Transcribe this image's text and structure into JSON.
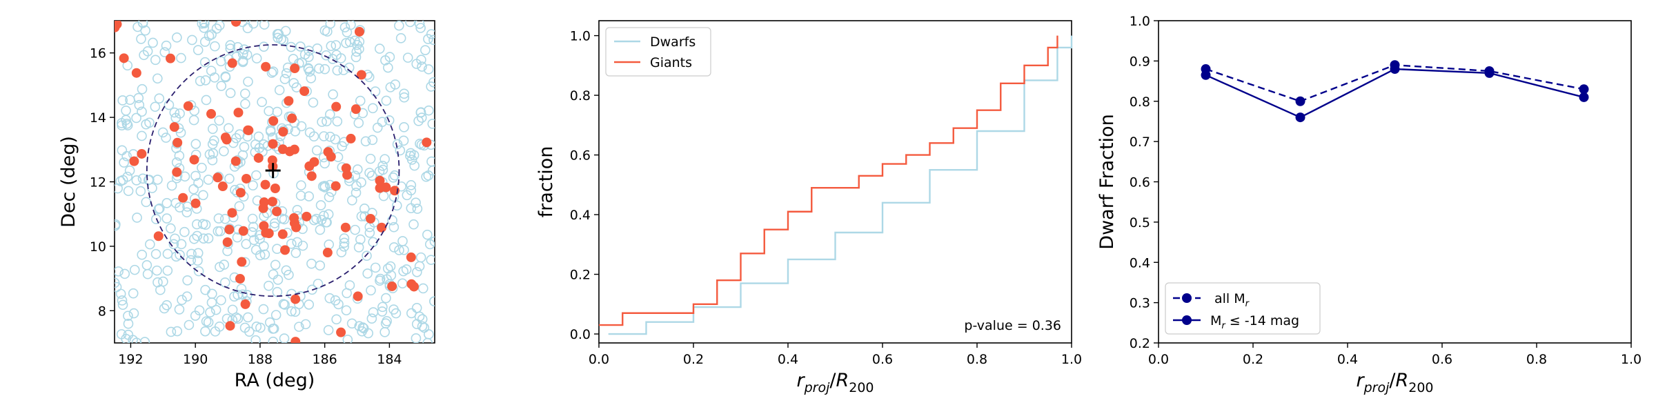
{
  "colors": {
    "dwarf": "#add8e6",
    "giant": "#f45a3e",
    "navy": "#00008b",
    "circle": "#2a1f6e",
    "axis": "#000000"
  },
  "chart_data": [
    {
      "type": "scatter",
      "title": "",
      "xlabel": "RA (deg)",
      "ylabel": "Dec (deg)",
      "xlim": [
        192.5,
        182.6
      ],
      "ylim": [
        7.0,
        17.0
      ],
      "xticks": [
        192,
        190,
        188,
        186,
        184
      ],
      "yticks": [
        8,
        10,
        12,
        14,
        16
      ],
      "center": {
        "ra": 187.6,
        "dec": 12.35,
        "marker": "+"
      },
      "circle": {
        "ra": 187.6,
        "dec": 12.35,
        "radius_deg": 3.9
      },
      "series": [
        {
          "name": "Dwarfs",
          "marker": "open-circle",
          "count": 620,
          "seed": 11,
          "note": "points scattered across the field"
        },
        {
          "name": "Giants",
          "marker": "filled-circle",
          "count": 95,
          "seed": 7,
          "note": "concentrated near the cluster center"
        }
      ]
    },
    {
      "type": "line",
      "title": "",
      "xlabel": "r_proj/R_200",
      "ylabel": "fraction",
      "xlim": [
        0.0,
        1.0
      ],
      "ylim": [
        -0.03,
        1.05
      ],
      "xticks": [
        0.0,
        0.2,
        0.4,
        0.6,
        0.8,
        1.0
      ],
      "yticks": [
        0.0,
        0.2,
        0.4,
        0.6,
        0.8,
        1.0
      ],
      "legend": [
        "Dwarfs",
        "Giants"
      ],
      "annotation": "p-value = 0.36",
      "series": [
        {
          "name": "Dwarfs",
          "step": "cumulative",
          "x": [
            0.02,
            0.1,
            0.2,
            0.3,
            0.4,
            0.5,
            0.6,
            0.7,
            0.8,
            0.9,
            0.97,
            1.0
          ],
          "y": [
            0.0,
            0.04,
            0.09,
            0.17,
            0.25,
            0.34,
            0.44,
            0.55,
            0.68,
            0.85,
            0.96,
            1.0
          ]
        },
        {
          "name": "Giants",
          "step": "cumulative",
          "x": [
            0.0,
            0.03,
            0.05,
            0.1,
            0.18,
            0.2,
            0.25,
            0.3,
            0.35,
            0.4,
            0.45,
            0.5,
            0.55,
            0.6,
            0.65,
            0.7,
            0.75,
            0.8,
            0.85,
            0.9,
            0.95,
            0.97
          ],
          "y": [
            0.03,
            0.03,
            0.07,
            0.07,
            0.07,
            0.1,
            0.18,
            0.27,
            0.35,
            0.41,
            0.49,
            0.49,
            0.53,
            0.57,
            0.6,
            0.64,
            0.69,
            0.75,
            0.84,
            0.9,
            0.96,
            1.0
          ]
        }
      ]
    },
    {
      "type": "line",
      "title": "",
      "xlabel": "r_proj/R_200",
      "ylabel": "Dwarf Fraction",
      "xlim": [
        0.0,
        1.0
      ],
      "ylim": [
        0.2,
        1.0
      ],
      "xticks": [
        0.0,
        0.2,
        0.4,
        0.6,
        0.8,
        1.0
      ],
      "yticks": [
        0.2,
        0.3,
        0.4,
        0.5,
        0.6,
        0.7,
        0.8,
        0.9,
        1.0
      ],
      "legend": [
        "all M_r",
        "M_r ≤ -14 mag"
      ],
      "series": [
        {
          "name": "all M_r",
          "style": "dashed",
          "x": [
            0.1,
            0.3,
            0.5,
            0.7,
            0.9
          ],
          "y": [
            0.88,
            0.8,
            0.89,
            0.875,
            0.83
          ]
        },
        {
          "name": "M_r ≤ -14 mag",
          "style": "solid",
          "x": [
            0.1,
            0.3,
            0.5,
            0.7,
            0.9
          ],
          "y": [
            0.865,
            0.76,
            0.88,
            0.87,
            0.81
          ]
        }
      ]
    }
  ]
}
